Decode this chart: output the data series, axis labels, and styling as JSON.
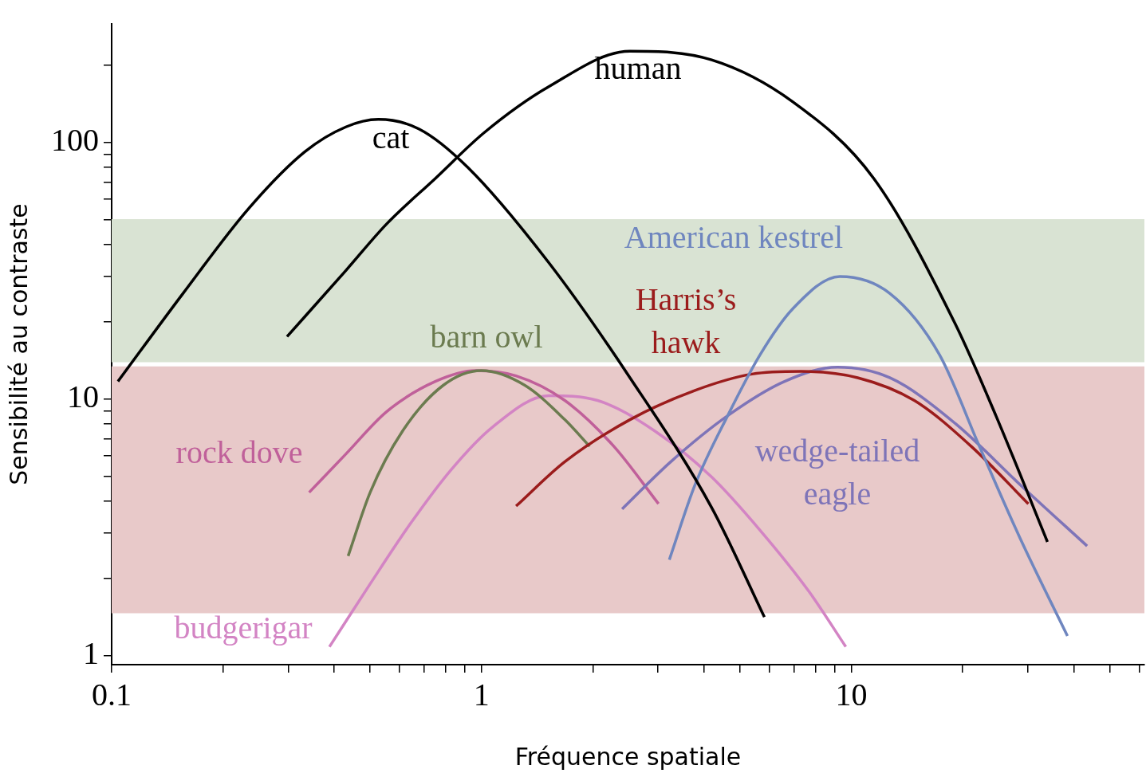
{
  "chart_data": {
    "type": "line",
    "xlabel": "Fréquence spatiale",
    "ylabel": "Sensibilité au contraste",
    "log": "xy",
    "grid": false,
    "legend": false,
    "xlim": [
      0.1,
      62
    ],
    "ylim": [
      0.92,
      290
    ],
    "xticks": [
      0.1,
      {
        "value": 0.2,
        "label": null
      },
      {
        "value": 0.3,
        "label": null
      },
      {
        "value": 0.4,
        "label": null
      },
      {
        "value": 0.5,
        "label": null
      },
      {
        "value": 0.6,
        "label": null
      },
      {
        "value": 0.7,
        "label": null
      },
      {
        "value": 0.8,
        "label": null
      },
      {
        "value": 0.9,
        "label": null
      },
      1,
      {
        "value": 2,
        "label": null
      },
      {
        "value": 3,
        "label": null
      },
      {
        "value": 4,
        "label": null
      },
      {
        "value": 5,
        "label": null
      },
      {
        "value": 6,
        "label": null
      },
      {
        "value": 7,
        "label": null
      },
      {
        "value": 8,
        "label": null
      },
      {
        "value": 9,
        "label": null
      },
      10,
      {
        "value": 20,
        "label": null
      },
      {
        "value": 30,
        "label": null
      },
      {
        "value": 40,
        "label": null
      },
      {
        "value": 50,
        "label": null
      },
      {
        "value": 60,
        "label": null
      }
    ],
    "yticks": [
      1,
      {
        "value": 2,
        "label": null
      },
      {
        "value": 3,
        "label": null
      },
      {
        "value": 4,
        "label": null
      },
      {
        "value": 5,
        "label": null
      },
      {
        "value": 6,
        "label": null
      },
      {
        "value": 7,
        "label": null
      },
      {
        "value": 8,
        "label": null
      },
      {
        "value": 9,
        "label": null
      },
      10,
      {
        "value": 20,
        "label": null
      },
      {
        "value": 30,
        "label": null
      },
      {
        "value": 40,
        "label": null
      },
      {
        "value": 50,
        "label": null
      },
      {
        "value": 60,
        "label": null
      },
      {
        "value": 70,
        "label": null
      },
      {
        "value": 80,
        "label": null
      },
      {
        "value": 90,
        "label": null
      },
      100,
      {
        "value": 200,
        "label": null
      }
    ],
    "bands": [
      {
        "axis": "y",
        "from": 13.9,
        "to": 50.2,
        "color": "#d9e3d3"
      },
      {
        "axis": "y",
        "from": 1.46,
        "to": 13.4,
        "color": "#e8c9c9"
      }
    ],
    "series": [
      {
        "name": "human",
        "color": "#000000",
        "x": [
          0.298,
          0.43,
          0.553,
          0.75,
          1.015,
          1.52,
          2.52,
          4.19,
          6.95,
          11.5,
          19.1,
          24.6,
          33.9
        ],
        "values": [
          17.5,
          31.7,
          48,
          72.4,
          109,
          165,
          227,
          210,
          144,
          72.4,
          19.6,
          8.6,
          2.77
        ]
      },
      {
        "name": "cat",
        "color": "#000000",
        "x": [
          0.104,
          0.156,
          0.234,
          0.333,
          0.43,
          0.526,
          0.677,
          0.918,
          1.52,
          2.52,
          4.19,
          5.82
        ],
        "values": [
          11.7,
          25.8,
          55,
          92,
          115,
          123,
          113,
          80,
          34,
          12.1,
          3.77,
          1.41
        ]
      },
      {
        "name": "American kestrel",
        "color": "#6f86bf",
        "x": [
          3.22,
          3.78,
          4.63,
          5.67,
          6.95,
          9.31,
          12.7,
          17.3,
          22.2,
          28.6,
          38.4
        ],
        "values": [
          2.36,
          4.63,
          8.6,
          14.9,
          22.5,
          30,
          25.8,
          14.9,
          6.53,
          2.86,
          1.19
        ]
      },
      {
        "name": "Harris’s hawk",
        "color": "#9b1c1c",
        "x": [
          1.24,
          1.68,
          2.52,
          3.78,
          5.39,
          7.31,
          10.4,
          14.8,
          21.1,
          30.1
        ],
        "values": [
          3.82,
          5.69,
          8.3,
          10.8,
          12.5,
          12.8,
          12.1,
          9.86,
          6.53,
          3.9
        ]
      },
      {
        "name": "barn owl",
        "color": "#6b7b4f",
        "x": [
          0.436,
          0.5,
          0.612,
          0.788,
          1.0,
          1.31,
          1.68,
          1.96
        ],
        "values": [
          2.44,
          4.32,
          7.5,
          11.3,
          12.9,
          11.3,
          8.3,
          6.53
        ]
      },
      {
        "name": "wedge-tailed eagle",
        "color": "#7e74b8",
        "x": [
          2.4,
          3.25,
          4.63,
          6.6,
          9.18,
          12.7,
          19.1,
          28.6,
          43.4
        ],
        "values": [
          3.72,
          5.69,
          8.6,
          11.7,
          13.3,
          12.1,
          8.02,
          4.63,
          2.67
        ]
      },
      {
        "name": "rock dove",
        "color": "#c0609a",
        "x": [
          0.342,
          0.43,
          0.553,
          0.75,
          0.965,
          1.24,
          1.68,
          2.28,
          3.01
        ],
        "values": [
          4.32,
          6.1,
          8.9,
          11.7,
          12.9,
          12.3,
          9.86,
          6.53,
          3.9
        ]
      },
      {
        "name": "budgerigar",
        "color": "#d384c4",
        "x": [
          0.388,
          0.5,
          0.644,
          0.829,
          1.07,
          1.52,
          2.06,
          2.94,
          4.19,
          5.67,
          7.69,
          9.66
        ],
        "values": [
          1.08,
          1.9,
          3.28,
          5.31,
          7.76,
          10.3,
          9.86,
          7.5,
          4.96,
          3.07,
          1.77,
          1.08
        ]
      }
    ]
  }
}
